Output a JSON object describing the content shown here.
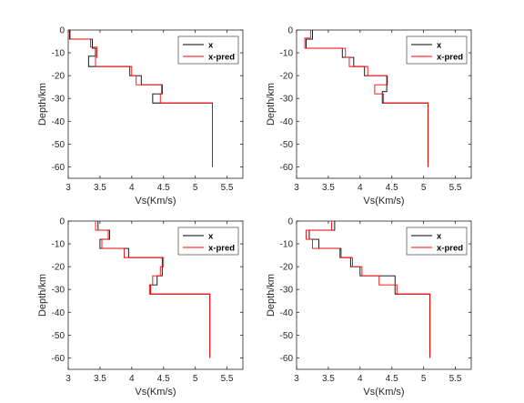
{
  "figure": {
    "background": "#ffffff"
  },
  "chart_data": [
    {
      "type": "line",
      "xlabel": "Vs(Km/s)",
      "ylabel": "Depth/km",
      "xlim": [
        3,
        5.75
      ],
      "ylim": [
        -65,
        0
      ],
      "xticks": [
        "3",
        "3.5",
        "4",
        "4.5",
        "5",
        "5.5"
      ],
      "yticks": [
        "0",
        "-10",
        "-20",
        "-30",
        "-40",
        "-50",
        "-60"
      ],
      "grid": false,
      "legend_position": "top-right",
      "series": [
        {
          "name": "x",
          "color": "#000000",
          "x": [
            3.02,
            3.02,
            3.38,
            3.38,
            3.43,
            3.43,
            3.32,
            3.32,
            3.97,
            3.97,
            4.15,
            4.15,
            4.48,
            4.48,
            4.33,
            4.33,
            5.27,
            5.27
          ],
          "y": [
            0,
            -4,
            -4,
            -8,
            -8,
            -11.5,
            -11.5,
            -16,
            -16,
            -20,
            -20,
            -24,
            -24,
            -28,
            -28,
            -32,
            -32,
            -60
          ]
        },
        {
          "name": "x-pred",
          "color": "#ff0000",
          "x": [
            3.03,
            3.03,
            3.35,
            3.35,
            3.45,
            3.45,
            3.43,
            3.43,
            4.0,
            4.0,
            4.07,
            4.07,
            4.47,
            4.47,
            4.45,
            4.45,
            5.27,
            5.27
          ],
          "y": [
            0,
            -4,
            -4,
            -7.5,
            -7.5,
            -12,
            -12,
            -16,
            -16,
            -20,
            -20,
            -24,
            -24,
            -28,
            -28,
            -32,
            -32,
            -60
          ]
        }
      ]
    },
    {
      "type": "line",
      "xlabel": "Vs(Km/s)",
      "ylabel": "Depth/km",
      "xlim": [
        3,
        5.75
      ],
      "ylim": [
        -65,
        0
      ],
      "xticks": [
        "3",
        "3.5",
        "4",
        "4.5",
        "5",
        "5.5"
      ],
      "yticks": [
        "0",
        "-10",
        "-20",
        "-30",
        "-40",
        "-50",
        "-60"
      ],
      "grid": false,
      "legend_position": "top-right",
      "series": [
        {
          "name": "x",
          "color": "#000000",
          "x": [
            3.25,
            3.25,
            3.15,
            3.15,
            3.72,
            3.72,
            3.9,
            3.9,
            4.07,
            4.07,
            4.42,
            4.42,
            4.35,
            4.35,
            5.07,
            5.07
          ],
          "y": [
            0,
            -4,
            -4,
            -8,
            -8,
            -12,
            -12,
            -16,
            -16,
            -20,
            -20,
            -27,
            -27,
            -32,
            -32,
            -60
          ]
        },
        {
          "name": "x-pred",
          "color": "#ff0000",
          "x": [
            3.22,
            3.22,
            3.13,
            3.13,
            3.77,
            3.77,
            3.83,
            3.83,
            4.12,
            4.12,
            4.43,
            4.43,
            4.23,
            4.23,
            4.37,
            4.37,
            5.07,
            5.07
          ],
          "y": [
            0,
            -3.5,
            -3.5,
            -8,
            -8,
            -12,
            -12,
            -16,
            -16,
            -20,
            -20,
            -24,
            -24,
            -28,
            -28,
            -32,
            -32,
            -60
          ]
        }
      ]
    },
    {
      "type": "line",
      "xlabel": "Vs(Km/s)",
      "ylabel": "Depth/km",
      "xlim": [
        3,
        5.75
      ],
      "ylim": [
        -65,
        0
      ],
      "xticks": [
        "3",
        "3.5",
        "4",
        "4.5",
        "5",
        "5.5"
      ],
      "yticks": [
        "0",
        "-10",
        "-20",
        "-30",
        "-40",
        "-50",
        "-60"
      ],
      "grid": false,
      "legend_position": "top-right",
      "series": [
        {
          "name": "x",
          "color": "#000000",
          "x": [
            3.47,
            3.47,
            3.65,
            3.65,
            3.5,
            3.5,
            3.95,
            3.95,
            4.48,
            4.48,
            4.4,
            4.4,
            4.3,
            4.3,
            5.23,
            5.23
          ],
          "y": [
            0,
            -4,
            -4,
            -8,
            -8,
            -12,
            -12,
            -16,
            -16,
            -24,
            -24,
            -28,
            -28,
            -32,
            -32,
            -60
          ]
        },
        {
          "name": "x-pred",
          "color": "#ff0000",
          "x": [
            3.43,
            3.43,
            3.63,
            3.63,
            3.53,
            3.53,
            3.88,
            3.88,
            4.5,
            4.5,
            4.45,
            4.45,
            4.33,
            4.33,
            4.28,
            4.28,
            5.23,
            5.23
          ],
          "y": [
            0,
            -4,
            -4,
            -8,
            -8,
            -12,
            -12,
            -16,
            -16,
            -20,
            -20,
            -24,
            -24,
            -28,
            -28,
            -32,
            -32,
            -60
          ]
        }
      ]
    },
    {
      "type": "line",
      "xlabel": "Vs(Km/s)",
      "ylabel": "Depth/km",
      "xlim": [
        3,
        5.75
      ],
      "ylim": [
        -65,
        0
      ],
      "xticks": [
        "3",
        "3.5",
        "4",
        "4.5",
        "5",
        "5.5"
      ],
      "yticks": [
        "0",
        "-10",
        "-20",
        "-30",
        "-40",
        "-50",
        "-60"
      ],
      "grid": false,
      "legend_position": "top-right",
      "series": [
        {
          "name": "x",
          "color": "#000000",
          "x": [
            3.6,
            3.6,
            3.2,
            3.2,
            3.35,
            3.35,
            3.7,
            3.7,
            3.85,
            3.85,
            4.0,
            4.0,
            4.55,
            4.55,
            5.1,
            5.1
          ],
          "y": [
            0,
            -4,
            -4,
            -8,
            -8,
            -12,
            -12,
            -16,
            -16,
            -20,
            -20,
            -24,
            -24,
            -32,
            -32,
            -60
          ]
        },
        {
          "name": "x-pred",
          "color": "#ff0000",
          "x": [
            3.55,
            3.55,
            3.15,
            3.15,
            3.25,
            3.25,
            3.68,
            3.68,
            3.88,
            3.88,
            4.03,
            4.03,
            4.3,
            4.3,
            4.58,
            4.58,
            5.1,
            5.1
          ],
          "y": [
            0,
            -4,
            -4,
            -8,
            -8,
            -12,
            -12,
            -16,
            -16,
            -20,
            -20,
            -24,
            -24,
            -28,
            -28,
            -32,
            -32,
            -60
          ]
        }
      ]
    }
  ]
}
